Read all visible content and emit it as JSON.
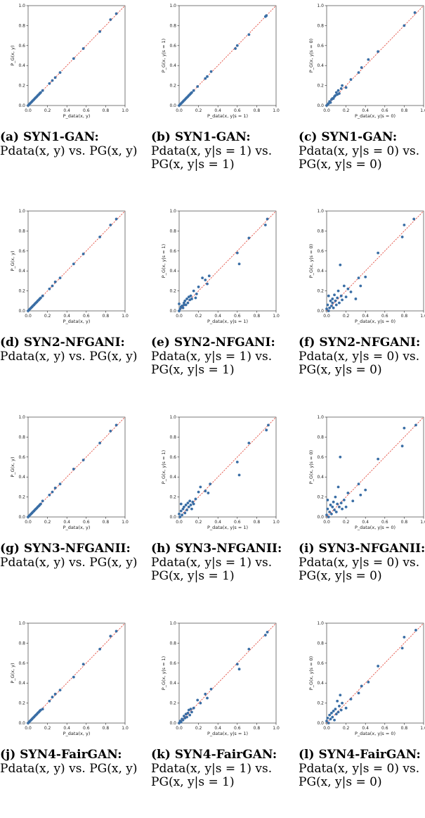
{
  "colors": {
    "point": "#3a6ea5",
    "diagonal": "#e03c2e",
    "axis": "#222222"
  },
  "chart_data": [
    {
      "type": "scatter",
      "panel": "(a)",
      "title": "SYN1-GAN:",
      "caption_formula": "Pdata(x, y) vs. PG(x, y)",
      "xlabel": "P_data(x, y)",
      "ylabel": "P_G(x, y)",
      "xlim": [
        0,
        1
      ],
      "ylim": [
        0,
        1
      ],
      "diagonal": true,
      "x": [
        0.0,
        0.01,
        0.02,
        0.03,
        0.04,
        0.05,
        0.06,
        0.07,
        0.08,
        0.09,
        0.1,
        0.11,
        0.12,
        0.13,
        0.15,
        0.22,
        0.25,
        0.28,
        0.33,
        0.47,
        0.57,
        0.74,
        0.85,
        0.91
      ],
      "y": [
        0.0,
        0.01,
        0.02,
        0.03,
        0.04,
        0.05,
        0.06,
        0.07,
        0.08,
        0.09,
        0.1,
        0.11,
        0.12,
        0.13,
        0.15,
        0.22,
        0.25,
        0.28,
        0.33,
        0.47,
        0.57,
        0.74,
        0.86,
        0.92
      ]
    },
    {
      "type": "scatter",
      "panel": "(b)",
      "title": "SYN1-GAN:",
      "caption_formula": "Pdata(x, y|s = 1) vs. PG(x, y|s = 1)",
      "xlabel": "P_data(x, y|s = 1)",
      "ylabel": "P_G(x, y|s = 1)",
      "xlim": [
        0,
        1
      ],
      "ylim": [
        0,
        1
      ],
      "diagonal": true,
      "x": [
        0.0,
        0.01,
        0.02,
        0.03,
        0.04,
        0.05,
        0.06,
        0.07,
        0.08,
        0.09,
        0.1,
        0.11,
        0.12,
        0.13,
        0.15,
        0.19,
        0.27,
        0.29,
        0.33,
        0.58,
        0.6,
        0.72,
        0.89,
        0.9
      ],
      "y": [
        0.0,
        0.01,
        0.02,
        0.03,
        0.04,
        0.05,
        0.06,
        0.07,
        0.08,
        0.09,
        0.1,
        0.11,
        0.12,
        0.13,
        0.15,
        0.19,
        0.27,
        0.29,
        0.34,
        0.57,
        0.6,
        0.71,
        0.89,
        0.9
      ]
    },
    {
      "type": "scatter",
      "panel": "(c)",
      "title": "SYN1-GAN:",
      "caption_formula": "Pdata(x, y|s = 0) vs. PG(x, y|s = 0)",
      "xlabel": "P_data(x, y|s = 0)",
      "ylabel": "P_G(x, y|s = 0)",
      "xlim": [
        0,
        1
      ],
      "ylim": [
        0,
        1
      ],
      "diagonal": true,
      "x": [
        0.0,
        0.01,
        0.02,
        0.03,
        0.04,
        0.05,
        0.06,
        0.07,
        0.08,
        0.09,
        0.1,
        0.11,
        0.12,
        0.13,
        0.15,
        0.16,
        0.2,
        0.25,
        0.33,
        0.36,
        0.43,
        0.53,
        0.8,
        0.91
      ],
      "y": [
        0.0,
        0.01,
        0.02,
        0.04,
        0.03,
        0.06,
        0.07,
        0.07,
        0.09,
        0.1,
        0.13,
        0.11,
        0.15,
        0.12,
        0.17,
        0.2,
        0.18,
        0.26,
        0.33,
        0.38,
        0.46,
        0.54,
        0.8,
        0.93
      ]
    },
    {
      "type": "scatter",
      "panel": "(d)",
      "title": "SYN2-NFGANI:",
      "caption_formula": "Pdata(x, y) vs. PG(x, y)",
      "xlabel": "P_data(x, y)",
      "ylabel": "P_G(x, y)",
      "xlim": [
        0,
        1
      ],
      "ylim": [
        0,
        1
      ],
      "diagonal": true,
      "x": [
        0.0,
        0.01,
        0.02,
        0.03,
        0.04,
        0.05,
        0.06,
        0.07,
        0.08,
        0.09,
        0.1,
        0.11,
        0.12,
        0.13,
        0.15,
        0.22,
        0.25,
        0.28,
        0.33,
        0.47,
        0.57,
        0.74,
        0.85,
        0.91
      ],
      "y": [
        0.0,
        0.01,
        0.02,
        0.03,
        0.04,
        0.05,
        0.06,
        0.07,
        0.08,
        0.09,
        0.1,
        0.11,
        0.12,
        0.13,
        0.15,
        0.22,
        0.25,
        0.29,
        0.33,
        0.47,
        0.57,
        0.74,
        0.86,
        0.92
      ]
    },
    {
      "type": "scatter",
      "panel": "(e)",
      "title": "SYN2-NFGANI:",
      "caption_formula": "Pdata(x, y|s = 1) vs. PG(x, y|s = 1)",
      "xlabel": "P_data(x, y|s = 1)",
      "ylabel": "P_G(x, y|s = 1)",
      "xlim": [
        0,
        1
      ],
      "ylim": [
        0,
        1
      ],
      "diagonal": true,
      "x": [
        0.0,
        0.0,
        0.01,
        0.02,
        0.03,
        0.04,
        0.05,
        0.05,
        0.06,
        0.07,
        0.08,
        0.09,
        0.1,
        0.11,
        0.12,
        0.13,
        0.15,
        0.17,
        0.18,
        0.2,
        0.24,
        0.27,
        0.29,
        0.31,
        0.6,
        0.62,
        0.72,
        0.89,
        0.91
      ],
      "y": [
        0.0,
        0.07,
        0.02,
        0.04,
        0.05,
        0.03,
        0.06,
        0.08,
        0.1,
        0.06,
        0.12,
        0.08,
        0.14,
        0.11,
        0.15,
        0.12,
        0.2,
        0.13,
        0.17,
        0.24,
        0.33,
        0.31,
        0.27,
        0.35,
        0.58,
        0.47,
        0.73,
        0.86,
        0.92
      ]
    },
    {
      "type": "scatter",
      "panel": "(f)",
      "title": "SYN2-NFGANI:",
      "caption_formula": "Pdata(x, y|s = 0) vs. PG(x, y|s = 0)",
      "xlabel": "P_data(x, y|s = 0)",
      "ylabel": "P_G(x, y|s = 0)",
      "xlim": [
        0,
        1
      ],
      "ylim": [
        0,
        1
      ],
      "diagonal": true,
      "x": [
        0.0,
        0.01,
        0.02,
        0.02,
        0.03,
        0.04,
        0.05,
        0.06,
        0.06,
        0.07,
        0.08,
        0.09,
        0.1,
        0.11,
        0.12,
        0.13,
        0.14,
        0.15,
        0.16,
        0.18,
        0.2,
        0.22,
        0.25,
        0.3,
        0.33,
        0.35,
        0.4,
        0.53,
        0.78,
        0.8,
        0.9
      ],
      "y": [
        0.02,
        0.06,
        0.0,
        0.15,
        0.03,
        0.1,
        0.05,
        0.08,
        0.12,
        0.03,
        0.16,
        0.1,
        0.06,
        0.13,
        0.2,
        0.08,
        0.46,
        0.15,
        0.11,
        0.25,
        0.14,
        0.22,
        0.19,
        0.12,
        0.33,
        0.25,
        0.34,
        0.58,
        0.74,
        0.86,
        0.92
      ]
    },
    {
      "type": "scatter",
      "panel": "(g)",
      "title": "SYN3-NFGANII:",
      "caption_formula": "Pdata(x, y) vs. PG(x, y)",
      "xlabel": "P_data(x, y)",
      "ylabel": "P_G(x, y)",
      "xlim": [
        0,
        1
      ],
      "ylim": [
        0,
        1
      ],
      "diagonal": true,
      "x": [
        0.0,
        0.01,
        0.02,
        0.03,
        0.04,
        0.05,
        0.06,
        0.07,
        0.08,
        0.09,
        0.1,
        0.11,
        0.12,
        0.13,
        0.15,
        0.22,
        0.25,
        0.28,
        0.33,
        0.47,
        0.57,
        0.74,
        0.85,
        0.91
      ],
      "y": [
        0.0,
        0.01,
        0.02,
        0.03,
        0.04,
        0.05,
        0.06,
        0.07,
        0.08,
        0.09,
        0.1,
        0.11,
        0.12,
        0.13,
        0.16,
        0.22,
        0.25,
        0.29,
        0.33,
        0.48,
        0.57,
        0.74,
        0.86,
        0.92
      ]
    },
    {
      "type": "scatter",
      "panel": "(h)",
      "title": "SYN3-NFGANII:",
      "caption_formula": "Pdata(x, y|s = 1) vs. PG(x, y|s = 1)",
      "xlabel": "P_data(x, y|s = 1)",
      "ylabel": "P_G(x, y|s = 1)",
      "xlim": [
        0,
        1
      ],
      "ylim": [
        0,
        1
      ],
      "diagonal": true,
      "x": [
        0.0,
        0.01,
        0.02,
        0.02,
        0.03,
        0.04,
        0.05,
        0.06,
        0.07,
        0.08,
        0.09,
        0.1,
        0.11,
        0.12,
        0.13,
        0.14,
        0.15,
        0.17,
        0.2,
        0.22,
        0.27,
        0.3,
        0.32,
        0.6,
        0.62,
        0.72,
        0.9,
        0.92
      ],
      "y": [
        0.03,
        0.0,
        0.06,
        0.13,
        0.02,
        0.08,
        0.1,
        0.04,
        0.12,
        0.07,
        0.14,
        0.1,
        0.16,
        0.12,
        0.08,
        0.15,
        0.13,
        0.18,
        0.25,
        0.3,
        0.26,
        0.24,
        0.33,
        0.55,
        0.42,
        0.74,
        0.87,
        0.92
      ]
    },
    {
      "type": "scatter",
      "panel": "(i)",
      "title": "SYN3-NFGANII:",
      "caption_formula": "Pdata(x, y|s = 0) vs. PG(x, y|s = 0)",
      "xlabel": "P_data(x, y|s = 0)",
      "ylabel": "P_G(x, y|s = 0)",
      "xlim": [
        0,
        1
      ],
      "ylim": [
        0,
        1
      ],
      "diagonal": true,
      "x": [
        0.0,
        0.01,
        0.01,
        0.02,
        0.03,
        0.04,
        0.05,
        0.06,
        0.07,
        0.08,
        0.09,
        0.1,
        0.11,
        0.12,
        0.13,
        0.14,
        0.15,
        0.16,
        0.18,
        0.2,
        0.22,
        0.27,
        0.33,
        0.35,
        0.4,
        0.53,
        0.78,
        0.8,
        0.92
      ],
      "y": [
        0.02,
        0.08,
        0.17,
        0.0,
        0.05,
        0.12,
        0.03,
        0.1,
        0.15,
        0.07,
        0.2,
        0.05,
        0.13,
        0.3,
        0.1,
        0.6,
        0.14,
        0.08,
        0.17,
        0.1,
        0.24,
        0.16,
        0.33,
        0.22,
        0.27,
        0.58,
        0.71,
        0.89,
        0.92
      ]
    },
    {
      "type": "scatter",
      "panel": "(j)",
      "title": "SYN4-FairGAN:",
      "caption_formula": "Pdata(x, y) vs. PG(x, y)",
      "xlabel": "P_data(x, y)",
      "ylabel": "P_G(x, y)",
      "xlim": [
        0,
        1
      ],
      "ylim": [
        0,
        1
      ],
      "diagonal": true,
      "x": [
        0.0,
        0.01,
        0.02,
        0.03,
        0.04,
        0.05,
        0.06,
        0.07,
        0.08,
        0.09,
        0.1,
        0.11,
        0.12,
        0.13,
        0.15,
        0.22,
        0.25,
        0.28,
        0.33,
        0.47,
        0.57,
        0.74,
        0.85,
        0.91
      ],
      "y": [
        0.0,
        0.01,
        0.02,
        0.03,
        0.04,
        0.05,
        0.06,
        0.07,
        0.08,
        0.09,
        0.1,
        0.11,
        0.12,
        0.13,
        0.14,
        0.22,
        0.26,
        0.29,
        0.33,
        0.46,
        0.59,
        0.74,
        0.87,
        0.92
      ]
    },
    {
      "type": "scatter",
      "panel": "(k)",
      "title": "SYN4-FairGAN:",
      "caption_formula": "Pdata(x, y|s = 1) vs. PG(x, y|s = 1)",
      "xlabel": "P_data(x, y|s = 1)",
      "ylabel": "P_G(x, y|s = 1)",
      "xlim": [
        0,
        1
      ],
      "ylim": [
        0,
        1
      ],
      "diagonal": true,
      "x": [
        0.0,
        0.01,
        0.02,
        0.03,
        0.04,
        0.05,
        0.06,
        0.07,
        0.08,
        0.09,
        0.1,
        0.11,
        0.12,
        0.13,
        0.15,
        0.19,
        0.22,
        0.27,
        0.29,
        0.33,
        0.6,
        0.62,
        0.72,
        0.89,
        0.91
      ],
      "y": [
        0.0,
        0.02,
        0.01,
        0.04,
        0.03,
        0.07,
        0.05,
        0.09,
        0.06,
        0.1,
        0.13,
        0.08,
        0.14,
        0.11,
        0.15,
        0.23,
        0.2,
        0.29,
        0.25,
        0.34,
        0.59,
        0.54,
        0.74,
        0.88,
        0.91
      ]
    },
    {
      "type": "scatter",
      "panel": "(l)",
      "title": "SYN4-FairGAN:",
      "caption_formula": "Pdata(x, y|s = 0) vs. PG(x, y|s = 0)",
      "xlabel": "P_data(x, y|s = 0)",
      "ylabel": "P_G(x, y|s = 0)",
      "xlim": [
        0,
        1
      ],
      "ylim": [
        0,
        1
      ],
      "diagonal": true,
      "x": [
        0.0,
        0.01,
        0.02,
        0.03,
        0.04,
        0.05,
        0.06,
        0.07,
        0.08,
        0.09,
        0.1,
        0.11,
        0.12,
        0.13,
        0.14,
        0.15,
        0.16,
        0.2,
        0.25,
        0.33,
        0.36,
        0.43,
        0.53,
        0.78,
        0.8,
        0.92
      ],
      "y": [
        0.02,
        0.05,
        0.0,
        0.08,
        0.04,
        0.1,
        0.06,
        0.12,
        0.03,
        0.14,
        0.09,
        0.22,
        0.11,
        0.17,
        0.28,
        0.13,
        0.2,
        0.15,
        0.24,
        0.3,
        0.37,
        0.41,
        0.57,
        0.75,
        0.86,
        0.93
      ]
    }
  ]
}
